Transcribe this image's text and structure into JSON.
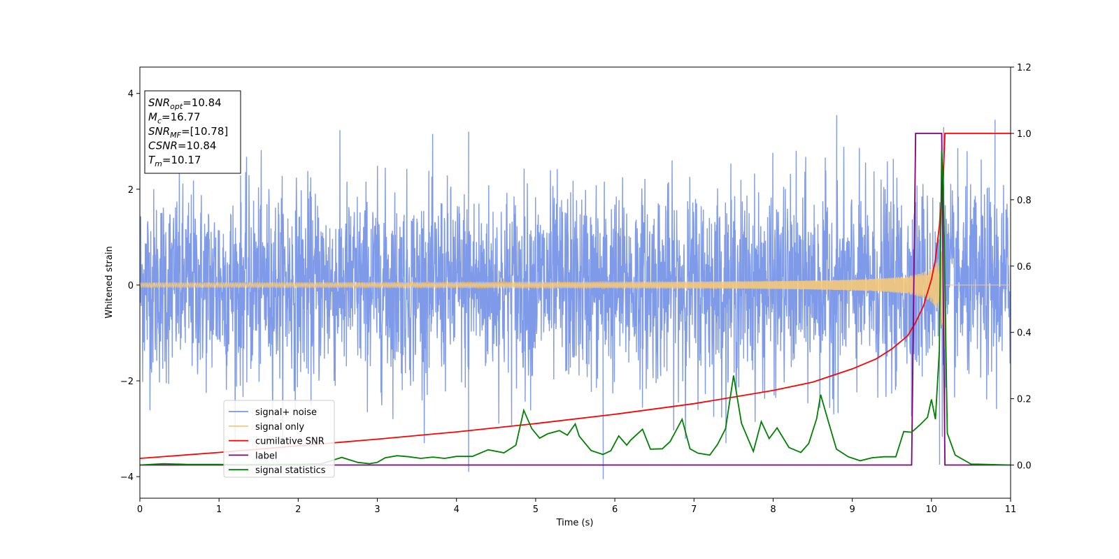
{
  "chart_data": {
    "type": "line",
    "title": "",
    "xlabel": "Time (s)",
    "ylabel": "Whitened strain",
    "ylabel_right": "",
    "xlim": [
      0,
      11
    ],
    "ylim": [
      -4.45,
      4.55
    ],
    "ylim_right": [
      -0.1,
      1.2
    ],
    "xticks": [
      0,
      1,
      2,
      3,
      4,
      5,
      6,
      7,
      8,
      9,
      10,
      11
    ],
    "yticks": [
      -4,
      -2,
      0,
      2,
      4
    ],
    "yticks_right": [
      0.0,
      0.2,
      0.4,
      0.6,
      0.8,
      1.0,
      1.2
    ],
    "xtick_labels": [
      "0",
      "1",
      "2",
      "3",
      "4",
      "5",
      "6",
      "7",
      "8",
      "9",
      "10",
      "11"
    ],
    "ytick_labels": [
      "−4",
      "−2",
      "0",
      "2",
      "4"
    ],
    "ytick_right_labels": [
      "0.0",
      "0.2",
      "0.4",
      "0.6",
      "0.8",
      "1.0",
      "1.2"
    ],
    "grid": false,
    "legend_position": "lower-left",
    "info_box": {
      "lines": [
        {
          "base": "SNR",
          "sub": "opt",
          "value": "=10.84"
        },
        {
          "base": "M",
          "sub": "c",
          "value": "=16.77"
        },
        {
          "base": "SNR",
          "sub": "MF",
          "value": "=[10.78]"
        },
        {
          "base": "CSNR",
          "sub": "",
          "value": "=10.84"
        },
        {
          "base": "T",
          "sub": "m",
          "value": "=10.17"
        }
      ]
    },
    "series": [
      {
        "name": "signal+ noise",
        "axis": "left",
        "color": "#7895e8",
        "description": "whitened strain noise, amplitude ~±2 to ±3.5",
        "noise_sigma": 1.0,
        "peaks": [
          {
            "x": 8.8,
            "y": 3.55
          },
          {
            "x": 10.8,
            "y": 3.45
          },
          {
            "x": 5.85,
            "y": -4.05
          },
          {
            "x": 4.15,
            "y": -3.9
          },
          {
            "x": 10.1,
            "y": -3.75
          },
          {
            "x": 4.15,
            "y": 3.2
          }
        ]
      },
      {
        "name": "signal only",
        "axis": "left",
        "color": "#f5c97a",
        "merger_time": 10.17,
        "peak_amplitude": 1.8
      },
      {
        "name": "cumilative SNR",
        "axis": "right",
        "color": "#ff0000",
        "x": [
          0,
          1,
          2,
          3,
          4,
          5,
          6,
          7,
          8,
          8.5,
          9,
          9.3,
          9.5,
          9.7,
          9.8,
          9.9,
          10.0,
          10.05,
          10.1,
          10.15,
          10.17,
          11
        ],
        "y": [
          0.02,
          0.038,
          0.058,
          0.078,
          0.1,
          0.125,
          0.153,
          0.185,
          0.225,
          0.25,
          0.29,
          0.32,
          0.35,
          0.39,
          0.43,
          0.48,
          0.56,
          0.62,
          0.72,
          0.87,
          1.0,
          1.0
        ]
      },
      {
        "name": "label",
        "axis": "right",
        "color": "#800080",
        "x": [
          0,
          9.75,
          9.8,
          10.13,
          10.17,
          11
        ],
        "y": [
          0,
          0,
          1,
          1,
          0,
          0
        ]
      },
      {
        "name": "signal statistics",
        "axis": "right",
        "color": "#008000",
        "x": [
          0,
          0.3,
          0.6,
          1.0,
          1.3,
          1.6,
          2.0,
          2.3,
          2.55,
          2.75,
          2.9,
          3.0,
          3.1,
          3.25,
          3.4,
          3.55,
          3.7,
          3.85,
          4.0,
          4.2,
          4.4,
          4.6,
          4.75,
          4.85,
          4.95,
          5.05,
          5.15,
          5.3,
          5.4,
          5.5,
          5.55,
          5.7,
          5.85,
          5.95,
          6.05,
          6.15,
          6.2,
          6.35,
          6.45,
          6.6,
          6.7,
          6.85,
          6.95,
          7.05,
          7.2,
          7.3,
          7.4,
          7.5,
          7.6,
          7.75,
          7.85,
          7.95,
          8.05,
          8.2,
          8.35,
          8.45,
          8.55,
          8.6,
          8.7,
          8.8,
          8.95,
          9.1,
          9.25,
          9.4,
          9.55,
          9.65,
          9.75,
          9.85,
          9.95,
          10.0,
          10.05,
          10.1,
          10.13,
          10.15,
          10.2,
          10.3,
          10.5,
          11.0
        ],
        "y": [
          0.0,
          0.004,
          0.002,
          0.002,
          0.001,
          0.002,
          0.002,
          0.004,
          0.023,
          0.008,
          0.004,
          0.008,
          0.022,
          0.028,
          0.025,
          0.02,
          0.024,
          0.02,
          0.026,
          0.026,
          0.046,
          0.037,
          0.06,
          0.165,
          0.11,
          0.081,
          0.094,
          0.104,
          0.09,
          0.124,
          0.087,
          0.044,
          0.032,
          0.043,
          0.088,
          0.06,
          0.075,
          0.108,
          0.048,
          0.049,
          0.071,
          0.138,
          0.049,
          0.036,
          0.03,
          0.063,
          0.11,
          0.27,
          0.126,
          0.041,
          0.131,
          0.08,
          0.112,
          0.053,
          0.038,
          0.065,
          0.14,
          0.212,
          0.129,
          0.048,
          0.025,
          0.013,
          0.022,
          0.025,
          0.025,
          0.101,
          0.099,
          0.12,
          0.144,
          0.198,
          0.138,
          0.345,
          0.949,
          0.84,
          0.096,
          0.03,
          0.003,
          0.0
        ]
      }
    ]
  }
}
